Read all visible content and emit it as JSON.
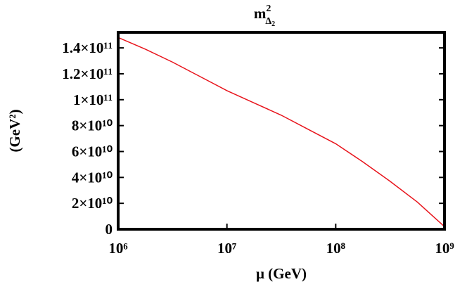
{
  "chart_data": {
    "type": "line",
    "title": [
      "m",
      "2",
      "Δ",
      "2"
    ],
    "x_label": "μ (GeV)",
    "y_label": "(GeV²)",
    "x": [
      1000000,
      1778279,
      3162278,
      5623413,
      10000000,
      17782794,
      31622777,
      56234133,
      100000000,
      177827941,
      316227766,
      562341325,
      1000000000
    ],
    "series": [
      {
        "name": "m²Δ₂",
        "color": "#e8141c",
        "values": [
          148000000000,
          139000000000,
          129000000000,
          118000000000,
          107000000000,
          97500000000,
          88000000000,
          77000000000,
          66000000000,
          52000000000,
          37000000000,
          21000000000,
          2000000000
        ]
      }
    ],
    "xlim": [
      1000000,
      1000000000
    ],
    "xlog": true,
    "xticks": [
      {
        "value": 1000000,
        "label": "10⁶"
      },
      {
        "value": 10000000,
        "label": "10⁷"
      },
      {
        "value": 100000000,
        "label": "10⁸"
      },
      {
        "value": 1000000000,
        "label": "10⁹"
      }
    ],
    "ylim": [
      0,
      152000000000
    ],
    "yticks": [
      0,
      {
        "value": 20000000000,
        "label": "2×10¹⁰"
      },
      {
        "value": 40000000000,
        "label": "4×10¹⁰"
      },
      {
        "value": 60000000000,
        "label": "6×10¹⁰"
      },
      {
        "value": 80000000000,
        "label": "8×10¹⁰"
      },
      {
        "value": 100000000000,
        "label": "1×10¹¹"
      },
      {
        "value": 120000000000,
        "label": "1.2×10¹¹"
      },
      {
        "value": 140000000000,
        "label": "1.4×10¹¹"
      }
    ]
  }
}
